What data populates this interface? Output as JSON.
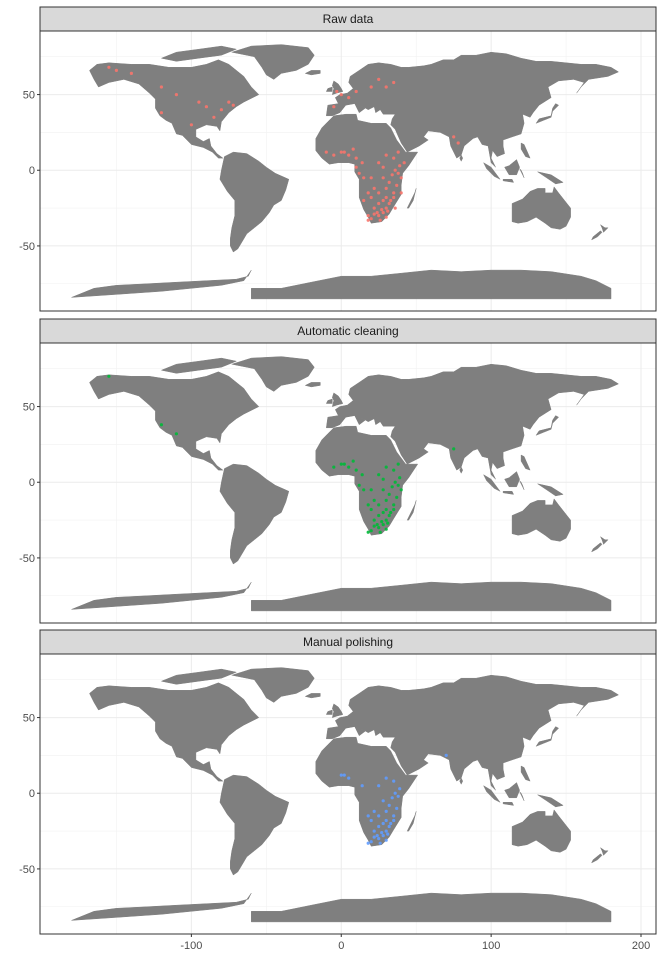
{
  "chart_data": {
    "type": "scatter",
    "description_type": "faceted world map with occurrence points",
    "x_axis": {
      "ticks": [
        -100,
        0,
        100,
        200
      ],
      "tick_labels": [
        "-100",
        "0",
        "100",
        "200"
      ],
      "range": [
        -201,
        210
      ],
      "label": ""
    },
    "y_axis": {
      "ticks": [
        -50,
        0,
        50
      ],
      "tick_labels": [
        "-50",
        "0",
        "50"
      ],
      "range": [
        -93,
        92
      ],
      "label": ""
    },
    "grid": true,
    "land_color": "#7f7f7f",
    "panels": [
      {
        "title": "Raw data",
        "color": "#F8766D",
        "points": [
          [
            -155,
            68
          ],
          [
            -150,
            66
          ],
          [
            -140,
            64
          ],
          [
            -120,
            55
          ],
          [
            -110,
            50
          ],
          [
            -95,
            45
          ],
          [
            -90,
            42
          ],
          [
            -80,
            40
          ],
          [
            -75,
            45
          ],
          [
            -72,
            43
          ],
          [
            -85,
            35
          ],
          [
            -120,
            38
          ],
          [
            -100,
            30
          ],
          [
            -3,
            52
          ],
          [
            0,
            50
          ],
          [
            5,
            48
          ],
          [
            10,
            52
          ],
          [
            20,
            55
          ],
          [
            25,
            60
          ],
          [
            30,
            55
          ],
          [
            35,
            58
          ],
          [
            -5,
            42
          ],
          [
            75,
            22
          ],
          [
            78,
            18
          ],
          [
            -10,
            12
          ],
          [
            -5,
            10
          ],
          [
            0,
            12
          ],
          [
            5,
            10
          ],
          [
            10,
            8
          ],
          [
            2,
            12
          ],
          [
            8,
            14
          ],
          [
            30,
            10
          ],
          [
            35,
            8
          ],
          [
            38,
            12
          ],
          [
            42,
            5
          ],
          [
            36,
            0
          ],
          [
            38,
            -2
          ],
          [
            40,
            -5
          ],
          [
            37,
            -10
          ],
          [
            35,
            -15
          ],
          [
            33,
            -20
          ],
          [
            30,
            -25
          ],
          [
            28,
            -28
          ],
          [
            25,
            -30
          ],
          [
            20,
            -32
          ],
          [
            18,
            -30
          ],
          [
            22,
            -25
          ],
          [
            25,
            -22
          ],
          [
            28,
            -20
          ],
          [
            30,
            -18
          ],
          [
            32,
            -22
          ],
          [
            20,
            -18
          ],
          [
            15,
            -20
          ],
          [
            18,
            -15
          ],
          [
            22,
            -12
          ],
          [
            25,
            -15
          ],
          [
            30,
            -12
          ],
          [
            32,
            -8
          ],
          [
            28,
            -5
          ],
          [
            20,
            -5
          ],
          [
            15,
            -5
          ],
          [
            12,
            -2
          ],
          [
            10,
            2
          ],
          [
            14,
            5
          ],
          [
            25,
            5
          ],
          [
            28,
            2
          ],
          [
            34,
            -3
          ],
          [
            39,
            3
          ],
          [
            36,
            -25
          ],
          [
            26,
            -33
          ],
          [
            30,
            -31
          ],
          [
            24,
            -28
          ],
          [
            18,
            -33
          ],
          [
            35,
            -18
          ],
          [
            40,
            -15
          ],
          [
            27,
            -26
          ],
          [
            31,
            -27
          ],
          [
            22,
            -29
          ]
        ]
      },
      {
        "title": "Automatic cleaning",
        "color": "#00BA38",
        "points": [
          [
            -155,
            70
          ],
          [
            -120,
            38
          ],
          [
            -110,
            32
          ],
          [
            75,
            22
          ],
          [
            -5,
            10
          ],
          [
            0,
            12
          ],
          [
            2,
            12
          ],
          [
            5,
            10
          ],
          [
            10,
            8
          ],
          [
            8,
            14
          ],
          [
            30,
            10
          ],
          [
            35,
            8
          ],
          [
            38,
            12
          ],
          [
            36,
            0
          ],
          [
            38,
            -2
          ],
          [
            40,
            -5
          ],
          [
            37,
            -10
          ],
          [
            35,
            -15
          ],
          [
            33,
            -20
          ],
          [
            30,
            -25
          ],
          [
            28,
            -28
          ],
          [
            25,
            -30
          ],
          [
            20,
            -32
          ],
          [
            22,
            -25
          ],
          [
            25,
            -22
          ],
          [
            28,
            -20
          ],
          [
            30,
            -18
          ],
          [
            32,
            -22
          ],
          [
            20,
            -18
          ],
          [
            18,
            -15
          ],
          [
            22,
            -12
          ],
          [
            25,
            -15
          ],
          [
            30,
            -12
          ],
          [
            32,
            -8
          ],
          [
            28,
            -5
          ],
          [
            20,
            -5
          ],
          [
            15,
            -5
          ],
          [
            12,
            -2
          ],
          [
            14,
            5
          ],
          [
            25,
            5
          ],
          [
            28,
            2
          ],
          [
            34,
            -3
          ],
          [
            39,
            3
          ],
          [
            26,
            -33
          ],
          [
            30,
            -31
          ],
          [
            24,
            -28
          ],
          [
            18,
            -33
          ],
          [
            35,
            -18
          ],
          [
            27,
            -26
          ],
          [
            31,
            -27
          ],
          [
            22,
            -29
          ]
        ]
      },
      {
        "title": "Manual polishing",
        "color": "#619CFF",
        "points": [
          [
            70,
            25
          ],
          [
            0,
            12
          ],
          [
            2,
            12
          ],
          [
            5,
            10
          ],
          [
            30,
            10
          ],
          [
            35,
            8
          ],
          [
            36,
            0
          ],
          [
            38,
            -2
          ],
          [
            37,
            -10
          ],
          [
            35,
            -15
          ],
          [
            33,
            -20
          ],
          [
            30,
            -25
          ],
          [
            28,
            -28
          ],
          [
            25,
            -30
          ],
          [
            20,
            -32
          ],
          [
            22,
            -25
          ],
          [
            25,
            -22
          ],
          [
            28,
            -20
          ],
          [
            30,
            -18
          ],
          [
            32,
            -22
          ],
          [
            20,
            -18
          ],
          [
            18,
            -15
          ],
          [
            22,
            -12
          ],
          [
            25,
            -15
          ],
          [
            30,
            -12
          ],
          [
            32,
            -8
          ],
          [
            28,
            -5
          ],
          [
            14,
            5
          ],
          [
            25,
            5
          ],
          [
            34,
            -3
          ],
          [
            39,
            3
          ],
          [
            26,
            -33
          ],
          [
            30,
            -31
          ],
          [
            24,
            -28
          ],
          [
            18,
            -33
          ],
          [
            35,
            -18
          ],
          [
            27,
            -26
          ],
          [
            31,
            -27
          ],
          [
            22,
            -29
          ]
        ]
      }
    ]
  }
}
